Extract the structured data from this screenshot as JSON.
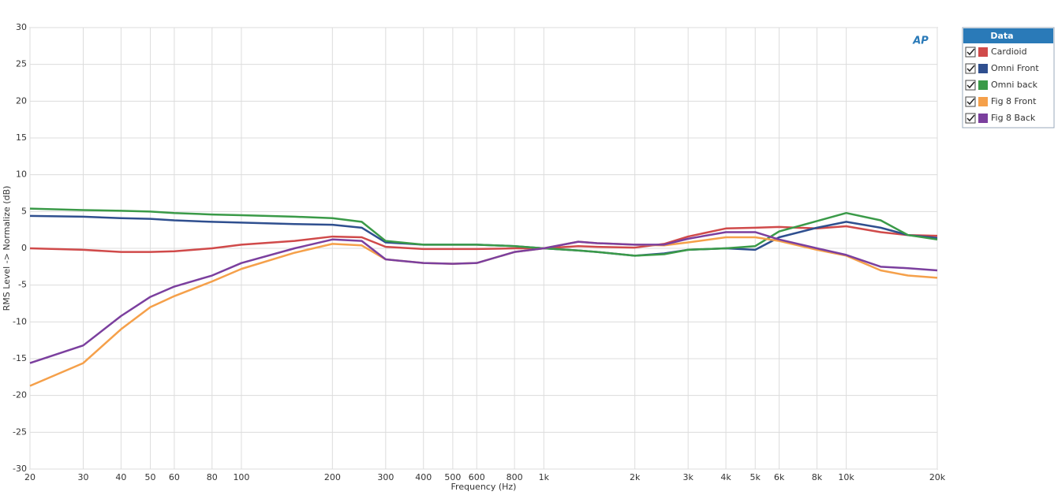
{
  "chart_data": {
    "type": "line",
    "x_label": "Frequency (Hz)",
    "y_label": "RMS Level -> Normalize (dB)",
    "logo": "AP",
    "legend_title": "Data",
    "legend_position": "right",
    "x_log": true,
    "grid": true,
    "xlim": [
      20,
      20000
    ],
    "ylim": [
      -30,
      30
    ],
    "xticks": [
      20,
      30,
      40,
      50,
      60,
      80,
      100,
      200,
      300,
      400,
      500,
      600,
      800,
      {
        "value": 1000,
        "label": "1k"
      },
      {
        "value": 2000,
        "label": "2k"
      },
      {
        "value": 3000,
        "label": "3k"
      },
      {
        "value": 4000,
        "label": "4k"
      },
      {
        "value": 5000,
        "label": "5k"
      },
      {
        "value": 6000,
        "label": "6k"
      },
      {
        "value": 8000,
        "label": "8k"
      },
      {
        "value": 10000,
        "label": "10k"
      },
      {
        "value": 20000,
        "label": "20k"
      }
    ],
    "yticks": [
      -30,
      -25,
      -20,
      -15,
      -10,
      -5,
      0,
      5,
      10,
      15,
      20,
      25,
      30
    ],
    "x": [
      20,
      30,
      40,
      50,
      60,
      80,
      100,
      150,
      200,
      250,
      300,
      400,
      500,
      600,
      800,
      1000,
      1300,
      1500,
      2000,
      2500,
      3000,
      4000,
      5000,
      6000,
      8000,
      10000,
      13000,
      16000,
      20000
    ],
    "series": [
      {
        "name": "Cardioid",
        "color": "#d04a4a",
        "values": [
          0,
          -0.2,
          -0.5,
          -0.5,
          -0.4,
          0,
          0.5,
          1.0,
          1.6,
          1.5,
          0.2,
          -0.1,
          -0.1,
          -0.1,
          0,
          0,
          0.3,
          0.2,
          0.1,
          0.6,
          1.6,
          2.7,
          2.8,
          2.9,
          2.7,
          3.0,
          2.2,
          1.8,
          1.7
        ]
      },
      {
        "name": "Omni Front",
        "color": "#2f4f8f",
        "values": [
          4.4,
          4.3,
          4.1,
          4.0,
          3.8,
          3.6,
          3.5,
          3.3,
          3.2,
          2.8,
          0.8,
          0.5,
          0.5,
          0.5,
          0.3,
          0,
          -0.3,
          -0.5,
          -1.0,
          -0.7,
          -0.2,
          0,
          -0.2,
          1.5,
          2.8,
          3.6,
          2.8,
          1.8,
          1.4
        ]
      },
      {
        "name": "Omni back",
        "color": "#3a9a48",
        "values": [
          5.4,
          5.2,
          5.1,
          5.0,
          4.8,
          4.6,
          4.5,
          4.3,
          4.1,
          3.6,
          1.0,
          0.5,
          0.5,
          0.5,
          0.3,
          0,
          -0.3,
          -0.5,
          -1.0,
          -0.8,
          -0.2,
          0,
          0.3,
          2.3,
          3.7,
          4.8,
          3.8,
          1.8,
          1.2
        ]
      },
      {
        "name": "Fig 8 Front",
        "color": "#f5a04a",
        "values": [
          -18.7,
          -15.6,
          -11.0,
          -8.0,
          -6.5,
          -4.5,
          -2.8,
          -0.6,
          0.6,
          0.4,
          -1.5,
          -2.0,
          -2.1,
          -2.0,
          -0.5,
          0,
          0.9,
          0.7,
          0.5,
          0.4,
          0.8,
          1.5,
          1.5,
          1.0,
          -0.2,
          -1.0,
          -3.0,
          -3.7,
          -4.0
        ]
      },
      {
        "name": "Fig 8 Back",
        "color": "#7b3f9e",
        "values": [
          -15.6,
          -13.2,
          -9.2,
          -6.6,
          -5.2,
          -3.7,
          -2.0,
          0,
          1.2,
          1.0,
          -1.5,
          -2.0,
          -2.1,
          -2.0,
          -0.5,
          0,
          0.9,
          0.7,
          0.5,
          0.5,
          1.3,
          2.2,
          2.2,
          1.2,
          0,
          -0.9,
          -2.5,
          -2.7,
          -3.0
        ]
      }
    ]
  }
}
